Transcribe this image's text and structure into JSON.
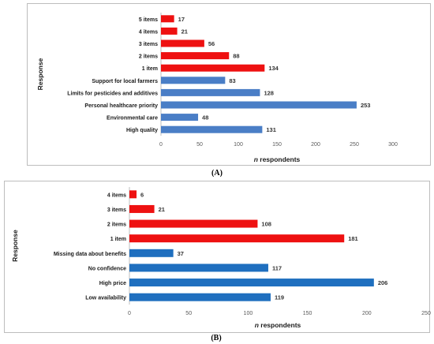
{
  "panels": [
    {
      "panel_label": "(A)",
      "chart_data": {
        "type": "bar",
        "orientation": "horizontal",
        "xlabel": "n respondents",
        "ylabel": "Response",
        "xlim": [
          0,
          300
        ],
        "xticks": [
          0,
          50,
          100,
          150,
          200,
          250,
          300
        ],
        "grid": false,
        "categories": [
          "5 items",
          "4 items",
          "3 items",
          "2 items",
          "1 item",
          "Support for local farmers",
          "Limits for pesticides and additives",
          "Personal healthcare priority",
          "Environmental care",
          "High quality"
        ],
        "values": [
          17,
          21,
          56,
          88,
          134,
          83,
          128,
          253,
          48,
          131
        ],
        "bar_colors": [
          "#ee1111",
          "#ee1111",
          "#ee1111",
          "#ee1111",
          "#ee1111",
          "#4a7ec6",
          "#4a7ec6",
          "#4a7ec6",
          "#4a7ec6",
          "#4a7ec6"
        ]
      }
    },
    {
      "panel_label": "(B)",
      "chart_data": {
        "type": "bar",
        "orientation": "horizontal",
        "xlabel": "n respondents",
        "ylabel": "Response",
        "xlim": [
          0,
          250
        ],
        "xticks": [
          0,
          50,
          100,
          150,
          200,
          250
        ],
        "grid": false,
        "categories": [
          "4 items",
          "3 items",
          "2 items",
          "1 item",
          "Missing data about benefits",
          "No confidence",
          "High price",
          "Low availability"
        ],
        "values": [
          6,
          21,
          108,
          181,
          37,
          117,
          206,
          119
        ],
        "bar_colors": [
          "#ee1111",
          "#ee1111",
          "#ee1111",
          "#ee1111",
          "#1f6fbf",
          "#1f6fbf",
          "#1f6fbf",
          "#1f6fbf"
        ]
      }
    }
  ]
}
